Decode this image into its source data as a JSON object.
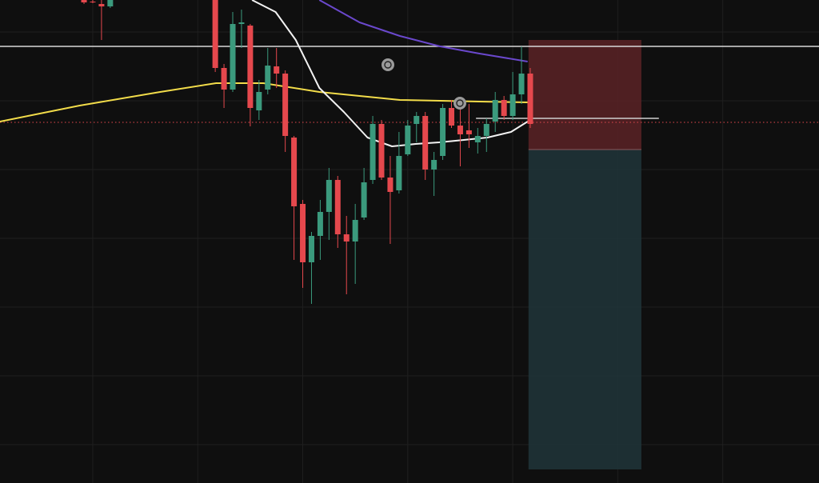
{
  "chart_data": {
    "type": "candlestick",
    "x": [
      0,
      1,
      2,
      3,
      15,
      16,
      17,
      18,
      19,
      20,
      21,
      22,
      23,
      24,
      25,
      26,
      27,
      28,
      29,
      30,
      31,
      32,
      33,
      34,
      35,
      36,
      37,
      38,
      39,
      40,
      41,
      42,
      43,
      44,
      45,
      46,
      47,
      48,
      49,
      50,
      51
    ],
    "open": [
      604,
      602,
      599,
      596,
      604,
      519,
      492,
      574,
      572,
      466,
      492,
      521,
      512,
      432,
      349,
      276,
      309,
      339,
      379,
      311,
      302,
      332,
      379,
      449,
      382,
      366,
      411,
      449,
      459,
      392,
      409,
      469,
      447,
      441,
      426,
      434,
      452,
      479,
      459,
      486,
      512
    ],
    "high": [
      604,
      604,
      604,
      604,
      604,
      524,
      589,
      592,
      574,
      504,
      544,
      544,
      516,
      434,
      354,
      314,
      354,
      394,
      384,
      334,
      349,
      394,
      459,
      454,
      409,
      439,
      454,
      464,
      464,
      414,
      474,
      479,
      479,
      474,
      444,
      456,
      489,
      484,
      514,
      546,
      519
    ],
    "low": [
      599,
      600,
      554,
      594,
      514,
      469,
      489,
      544,
      446,
      454,
      486,
      494,
      414,
      279,
      244,
      224,
      279,
      304,
      294,
      236,
      249,
      329,
      374,
      379,
      299,
      362,
      409,
      426,
      379,
      359,
      404,
      444,
      396,
      419,
      412,
      414,
      439,
      454,
      454,
      474,
      444
    ],
    "close": [
      601,
      601,
      596,
      604,
      519,
      492,
      574,
      576,
      469,
      489,
      522,
      512,
      434,
      346,
      276,
      309,
      339,
      379,
      311,
      302,
      329,
      376,
      449,
      382,
      364,
      409,
      447,
      459,
      392,
      404,
      469,
      447,
      436,
      436,
      434,
      449,
      479,
      459,
      486,
      512,
      449
    ],
    "up_color": "#3b9a7d",
    "down_color": "#e5484d",
    "xlim": [
      -9.6,
      84.0
    ],
    "ylim": [
      0,
      604
    ],
    "xticks": [
      1,
      13,
      25,
      37,
      49,
      61,
      73
    ],
    "yticks": [
      48,
      134,
      220,
      306,
      392,
      478,
      564
    ],
    "grid": true,
    "lines": [
      {
        "color": "#f2dc4a",
        "x": [
          -9.6,
          -0.5,
          8.7,
          15.1,
          20.5,
          26.9,
          36.1,
          45.2,
          50.7
        ],
        "values": [
          452,
          472,
          489,
          500,
          500,
          489,
          479,
          477,
          476
        ]
      },
      {
        "color": "#6a48cc",
        "x": [
          26.9,
          31.5,
          36.1,
          40.7,
          45.2,
          50.7
        ],
        "values": [
          604,
          576,
          559,
          546,
          537,
          527
        ]
      },
      {
        "color": "#f2f2f2",
        "x": [
          19.2,
          21.9,
          24.2,
          26.9,
          29.7,
          32.4,
          35.2,
          37.9,
          40.6,
          43.4,
          46.1,
          48.8,
          50.7
        ],
        "values": [
          604,
          589,
          554,
          494,
          464,
          432,
          421,
          424,
          426,
          429,
          432,
          439,
          452
        ]
      }
    ],
    "levels": [
      {
        "value": 546,
        "color": "#d9d9d9",
        "style": "solid"
      },
      {
        "value": 451,
        "color": "#e5484d",
        "style": "dotted"
      }
    ],
    "entry_line": {
      "x": [
        44.8,
        65.7
      ],
      "value": 456,
      "color": "#cfcfcf"
    },
    "position": {
      "x": [
        50.8,
        63.7
      ],
      "stop": 554,
      "entry": 417,
      "target": 17,
      "stop_color": "#5a2226",
      "target_color": "#1f3337"
    }
  }
}
